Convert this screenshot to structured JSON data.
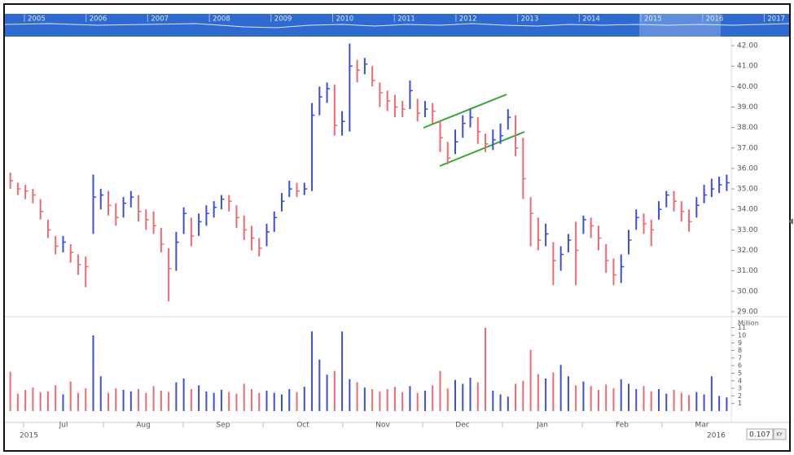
{
  "chart_data": {
    "type": "ohlc",
    "navigator_years": [
      "2005",
      "2006",
      "2007",
      "2008",
      "2009",
      "2010",
      "2011",
      "2012",
      "2013",
      "2014",
      "2015",
      "2016",
      "2017"
    ],
    "x_labels": [
      "Jul",
      "Aug",
      "Sep",
      "Oct",
      "Nov",
      "Dec",
      "Jan",
      "Feb",
      "Mar"
    ],
    "year_labels": [
      "2015",
      "2016"
    ],
    "up_color": "#3b4fd8",
    "down_color": "#ee6a70",
    "ylim": [
      28.8,
      42.4
    ],
    "yticks": [
      {
        "value": 29,
        "label": "29.00"
      },
      {
        "value": 30,
        "label": "30.00"
      },
      {
        "value": 31,
        "label": "31.00"
      },
      {
        "value": 32,
        "label": "32.00"
      },
      {
        "value": 33,
        "label": "33.00"
      },
      {
        "value": 34,
        "label": "34.00"
      },
      {
        "value": 35,
        "label": "35.00"
      },
      {
        "value": 36,
        "label": "36.00"
      },
      {
        "value": 37,
        "label": "37.00"
      },
      {
        "value": 38,
        "label": "38.00"
      },
      {
        "value": 39,
        "label": "39.00"
      },
      {
        "value": 40,
        "label": "40.00"
      },
      {
        "value": 41,
        "label": "41.00"
      },
      {
        "value": 42,
        "label": "42.00"
      }
    ],
    "high": [
      35.8,
      35.3,
      35.2,
      35.0,
      34.5,
      33.5,
      32.7,
      32.7,
      32.3,
      31.8,
      31.7,
      35.7,
      35.0,
      34.9,
      34.3,
      34.6,
      34.9,
      34.7,
      34.0,
      33.9,
      33.1,
      32.1,
      32.9,
      34.1,
      33.6,
      33.8,
      34.2,
      34.4,
      34.7,
      34.7,
      34.2,
      33.7,
      33.2,
      32.6,
      33.3,
      33.9,
      34.8,
      35.4,
      35.3,
      35.3,
      39.2,
      40.0,
      40.2,
      40.1,
      38.8,
      42.1,
      41.3,
      41.4,
      41.0,
      40.2,
      39.8,
      39.6,
      39.3,
      40.3,
      39.4,
      39.3,
      39.2,
      38.3,
      37.3,
      37.9,
      38.6,
      38.9,
      38.5,
      37.7,
      37.9,
      38.2,
      38.9,
      38.6,
      37.5,
      34.6,
      33.6,
      33.3,
      32.4,
      32.2,
      32.8,
      33.4,
      33.7,
      33.6,
      33.2,
      32.3,
      31.6,
      31.8,
      33.0,
      34.0,
      33.8,
      33.5,
      34.4,
      34.9,
      34.9,
      34.4,
      34.0,
      34.6,
      35.2,
      35.5,
      35.6,
      35.7
    ],
    "low": [
      35.0,
      34.7,
      34.5,
      34.3,
      33.5,
      32.6,
      31.8,
      31.9,
      31.4,
      30.8,
      30.2,
      32.8,
      34.0,
      33.7,
      33.2,
      33.6,
      34.1,
      33.4,
      33.0,
      32.8,
      31.9,
      29.5,
      31.0,
      32.8,
      32.2,
      32.7,
      33.2,
      33.6,
      34.0,
      33.9,
      33.1,
      32.5,
      32.0,
      31.7,
      32.2,
      32.9,
      33.9,
      34.6,
      34.6,
      34.7,
      34.9,
      38.6,
      39.2,
      37.6,
      37.6,
      37.8,
      40.2,
      40.6,
      40.0,
      39.0,
      38.8,
      38.5,
      38.5,
      38.9,
      38.3,
      38.5,
      38.2,
      36.8,
      36.2,
      36.7,
      37.5,
      38.0,
      37.2,
      36.8,
      36.9,
      37.2,
      37.9,
      36.6,
      34.5,
      32.2,
      32.0,
      32.2,
      30.3,
      31.0,
      31.9,
      30.3,
      32.8,
      32.6,
      32.0,
      30.9,
      30.3,
      30.4,
      31.8,
      33.0,
      32.8,
      32.2,
      33.5,
      34.1,
      33.9,
      33.4,
      32.9,
      33.6,
      34.3,
      34.6,
      34.8,
      34.9
    ],
    "close": [
      35.4,
      35.0,
      34.9,
      34.7,
      33.9,
      33.0,
      32.2,
      32.4,
      31.9,
      31.3,
      31.2,
      34.6,
      34.7,
      34.2,
      33.6,
      34.3,
      34.6,
      33.9,
      33.5,
      33.2,
      32.3,
      31.1,
      32.4,
      33.8,
      32.7,
      33.4,
      33.8,
      34.1,
      34.5,
      34.4,
      33.6,
      33.0,
      32.6,
      32.1,
      32.9,
      33.6,
      34.4,
      35.0,
      34.9,
      35.0,
      38.6,
      39.5,
      39.9,
      38.1,
      38.3,
      41.0,
      40.8,
      41.1,
      40.3,
      39.7,
      39.3,
      39.0,
      38.9,
      39.8,
      38.7,
      38.9,
      38.8,
      37.5,
      36.5,
      37.3,
      38.2,
      38.5,
      37.8,
      37.2,
      37.4,
      37.6,
      38.5,
      37.0,
      35.5,
      33.8,
      32.5,
      32.8,
      31.5,
      31.8,
      32.5,
      32.0,
      33.5,
      33.2,
      32.6,
      31.5,
      30.8,
      31.2,
      32.5,
      33.6,
      33.3,
      33.0,
      34.0,
      34.7,
      34.4,
      33.9,
      33.4,
      34.2,
      34.7,
      35.0,
      35.2,
      35.3
    ],
    "volume": {
      "label": "Million",
      "ylim": [
        0,
        11.5
      ],
      "yticks": [
        1,
        2,
        3,
        4,
        5,
        6,
        7,
        8,
        9,
        10,
        11
      ],
      "values": [
        5.2,
        2.3,
        2.8,
        3.1,
        2.5,
        2.6,
        3.4,
        2.2,
        3.9,
        2.4,
        3.0,
        10.0,
        4.6,
        2.4,
        3.0,
        2.8,
        2.6,
        2.9,
        2.4,
        3.3,
        2.7,
        2.5,
        3.8,
        4.3,
        2.9,
        3.4,
        2.6,
        2.4,
        2.8,
        2.5,
        2.3,
        3.6,
        2.9,
        2.4,
        2.7,
        2.4,
        2.2,
        2.9,
        2.5,
        3.2,
        10.5,
        6.8,
        4.8,
        5.3,
        10.5,
        4.2,
        3.8,
        3.1,
        2.9,
        2.6,
        2.9,
        3.2,
        2.5,
        3.3,
        2.4,
        2.7,
        3.4,
        5.3,
        3.0,
        4.1,
        3.6,
        4.4,
        3.8,
        11.0,
        2.7,
        2.2,
        1.9,
        3.6,
        4.0,
        8.1,
        4.9,
        4.3,
        5.1,
        6.1,
        4.6,
        3.4,
        3.9,
        3.3,
        2.8,
        3.5,
        3.0,
        4.2,
        3.6,
        2.9,
        3.3,
        2.6,
        2.9,
        2.3,
        2.8,
        2.4,
        2.1,
        2.5,
        2.2,
        4.6,
        2.0,
        1.8
      ]
    },
    "readout": "0.107",
    "readout_button": "KY"
  }
}
